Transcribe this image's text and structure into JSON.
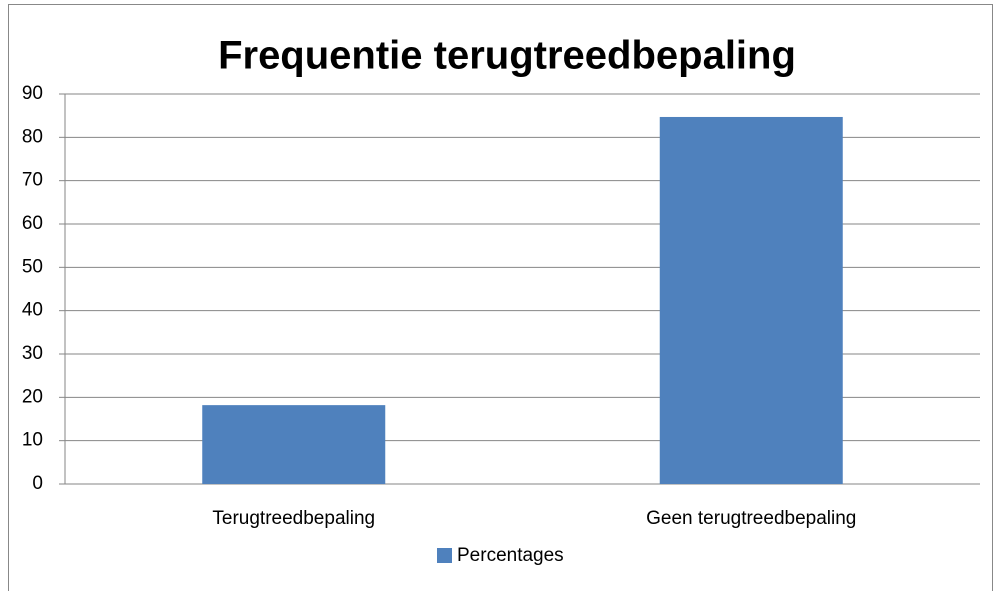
{
  "chart_data": {
    "type": "bar",
    "title": "Frequentie terugtreedbepaling",
    "categories": [
      "Terugtreedbepaling",
      "Geen terugtreedbepaling"
    ],
    "series": [
      {
        "name": "Percentages",
        "color": "#4f81bd",
        "values": [
          18.2,
          84.7
        ]
      }
    ],
    "ylim": [
      0,
      90
    ],
    "yticks": [
      0,
      10,
      20,
      30,
      40,
      50,
      60,
      70,
      80,
      90
    ],
    "grid": true,
    "legend": "bottom"
  }
}
